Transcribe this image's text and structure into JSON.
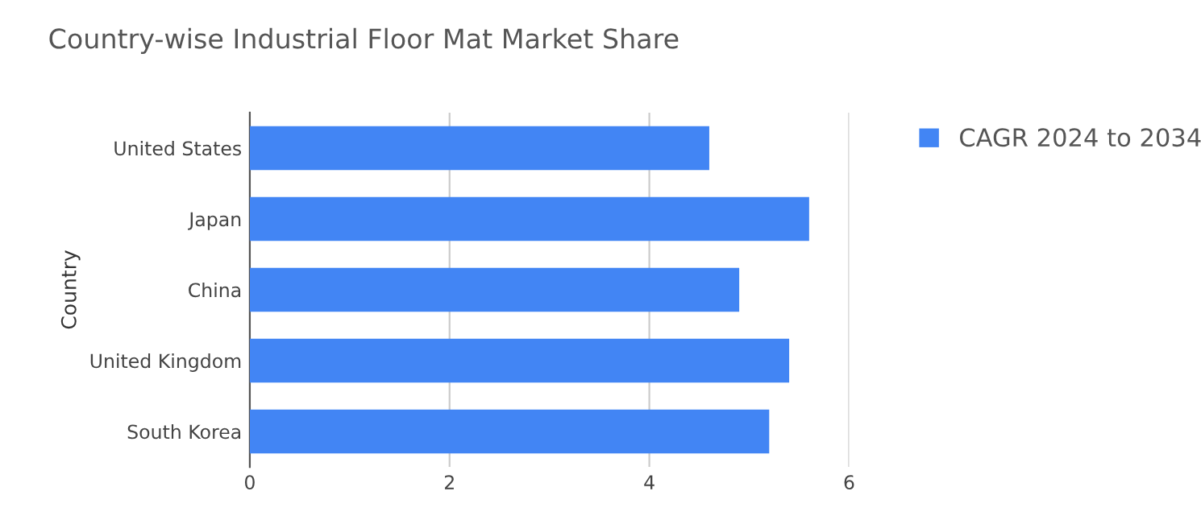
{
  "chart_data": {
    "type": "bar",
    "orientation": "horizontal",
    "title": "Country-wise Industrial Floor Mat Market Share",
    "ylabel": "Country",
    "categories": [
      "United States",
      "Japan",
      "China",
      "United Kingdom",
      "South Korea"
    ],
    "series": [
      {
        "name": "CAGR 2024 to 2034",
        "color": "#4285f4",
        "values": [
          4.6,
          5.6,
          4.9,
          5.4,
          5.2
        ]
      }
    ],
    "xlim": [
      0,
      6
    ],
    "xticks": [
      0,
      2,
      4,
      6
    ],
    "grid": "x",
    "legend": "top right"
  }
}
